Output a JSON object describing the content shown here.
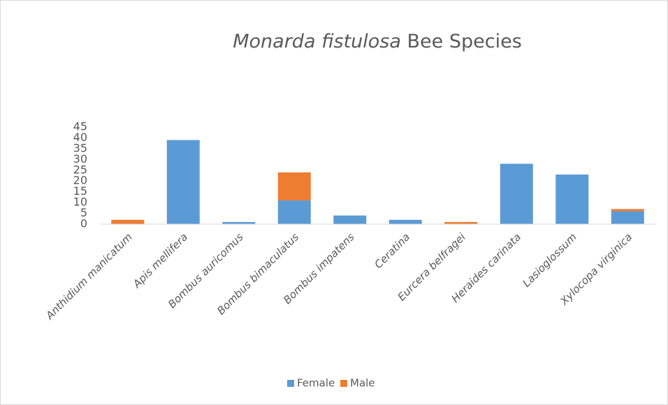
{
  "chart_data": {
    "type": "stacked_bar",
    "title": [
      "Monarda fistulosa",
      "Bee Species"
    ],
    "categories": [
      "Anthidium manicatum",
      "Apis mellifera",
      "Bombus auricomus",
      "Bombus bimaculatus",
      "Bombus impatens",
      "Ceratina",
      "Eurcera belfragei",
      "Heraides carinata",
      "Lasioglossum",
      "Xylocopa virginica"
    ],
    "series": [
      {
        "name": "Female",
        "color": "#5b9bd5",
        "values": [
          0,
          39,
          1,
          11,
          4,
          2,
          0,
          28,
          23,
          6
        ]
      },
      {
        "name": "Male",
        "color": "#ed7d31",
        "values": [
          2,
          0,
          0,
          13,
          0,
          0,
          1,
          0,
          0,
          1
        ]
      }
    ],
    "ylim": [
      0,
      45
    ],
    "yticks": [
      0,
      5,
      10,
      15,
      20,
      25,
      30,
      35,
      40,
      45
    ],
    "legend": "bottom",
    "grid": false
  }
}
